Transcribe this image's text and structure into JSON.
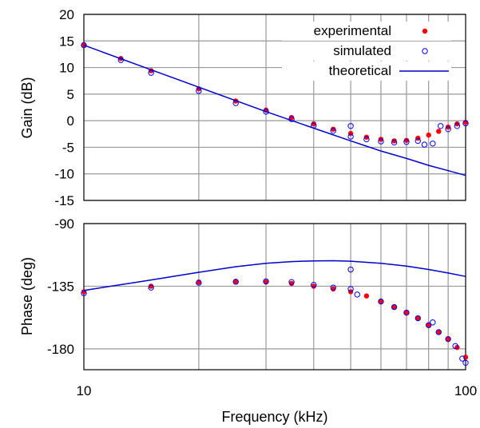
{
  "chart_data": [
    {
      "type": "scatter",
      "xlabel": "",
      "ylabel": "Gain (dB)",
      "xscale": "log",
      "xlim": [
        10,
        100
      ],
      "ylim": [
        -15,
        20
      ],
      "yticks": [
        20,
        15,
        10,
        5,
        0,
        -5,
        -10,
        -15
      ],
      "ytick_labels": [
        "20",
        "15",
        "10",
        "5",
        "0",
        "-5",
        "-10",
        "-15"
      ],
      "grid": true,
      "legend": {
        "placement": "top-right",
        "entries": [
          {
            "label": "experimental",
            "marker": "filled-circle",
            "color": "#ff0000"
          },
          {
            "label": "simulated",
            "marker": "open-circle",
            "color": "#0000ff"
          },
          {
            "label": "theoretical",
            "marker": "line",
            "color": "#0000cc"
          }
        ]
      },
      "series": [
        {
          "name": "experimental",
          "x": [
            10,
            12.5,
            15,
            20,
            25,
            30,
            35,
            40,
            45,
            50,
            55,
            60,
            65,
            70,
            75,
            80,
            85,
            90,
            95,
            100
          ],
          "y": [
            14.3,
            11.7,
            9.4,
            6.0,
            3.7,
            2.0,
            0.6,
            -0.6,
            -1.6,
            -2.4,
            -3.1,
            -3.5,
            -3.8,
            -3.7,
            -3.3,
            -2.7,
            -2.0,
            -1.2,
            -0.6,
            -0.3
          ]
        },
        {
          "name": "simulated",
          "x": [
            10,
            12.5,
            15,
            20,
            25,
            30,
            35,
            40,
            45,
            50,
            50,
            55,
            60,
            65,
            70,
            75,
            78,
            82,
            86,
            90,
            95,
            100
          ],
          "y": [
            14.2,
            11.4,
            9.0,
            5.6,
            3.3,
            1.7,
            0.3,
            -0.9,
            -1.9,
            -1.0,
            -3.0,
            -3.5,
            -3.9,
            -4.1,
            -4.0,
            -3.8,
            -4.5,
            -4.3,
            -1.0,
            -1.6,
            -1.0,
            -0.5
          ]
        },
        {
          "name": "theoretical",
          "x": [
            10,
            20,
            30,
            40,
            50,
            60,
            70,
            80,
            90,
            100
          ],
          "y": [
            14.2,
            6.3,
            1.7,
            -1.4,
            -3.8,
            -5.7,
            -7.1,
            -8.4,
            -9.4,
            -10.3
          ]
        }
      ]
    },
    {
      "type": "scatter",
      "xlabel": "Frequency (kHz)",
      "ylabel": "Phase (deg)",
      "xscale": "log",
      "xlim": [
        10,
        100
      ],
      "xticks": [
        10,
        100
      ],
      "xtick_labels": [
        "10",
        "100"
      ],
      "ylim": [
        -195,
        -90
      ],
      "yticks": [
        -90,
        -135,
        -180
      ],
      "ytick_labels": [
        "-90",
        "-135",
        "-180"
      ],
      "grid": true,
      "series": [
        {
          "name": "experimental",
          "x": [
            10,
            15,
            20,
            25,
            30,
            35,
            40,
            45,
            50,
            55,
            60,
            65,
            70,
            75,
            80,
            85,
            90,
            95,
            100
          ],
          "y": [
            -139,
            -135,
            -132,
            -131.5,
            -132,
            -133,
            -135,
            -137,
            -139,
            -142,
            -146,
            -150,
            -154,
            -158,
            -163,
            -168,
            -173,
            -179,
            -186
          ]
        },
        {
          "name": "simulated",
          "x": [
            10,
            15,
            20,
            25,
            30,
            35,
            40,
            45,
            50,
            50,
            52,
            60,
            65,
            70,
            75,
            80,
            82,
            85,
            90,
            94,
            98,
            100
          ],
          "y": [
            -140,
            -136,
            -132.5,
            -131.8,
            -131.5,
            -132,
            -134,
            -136,
            -123,
            -137,
            -141,
            -146,
            -150,
            -154,
            -158,
            -163,
            -161,
            -168,
            -173,
            -178,
            -187,
            -190
          ]
        },
        {
          "name": "theoretical",
          "x": [
            10,
            15,
            20,
            25,
            30,
            35,
            40,
            45,
            50,
            60,
            70,
            80,
            90,
            100
          ],
          "y": [
            -138,
            -130.5,
            -125,
            -121,
            -118.5,
            -117.3,
            -116.8,
            -116.7,
            -117,
            -118.5,
            -120.5,
            -123,
            -125.5,
            -128
          ]
        }
      ]
    }
  ]
}
